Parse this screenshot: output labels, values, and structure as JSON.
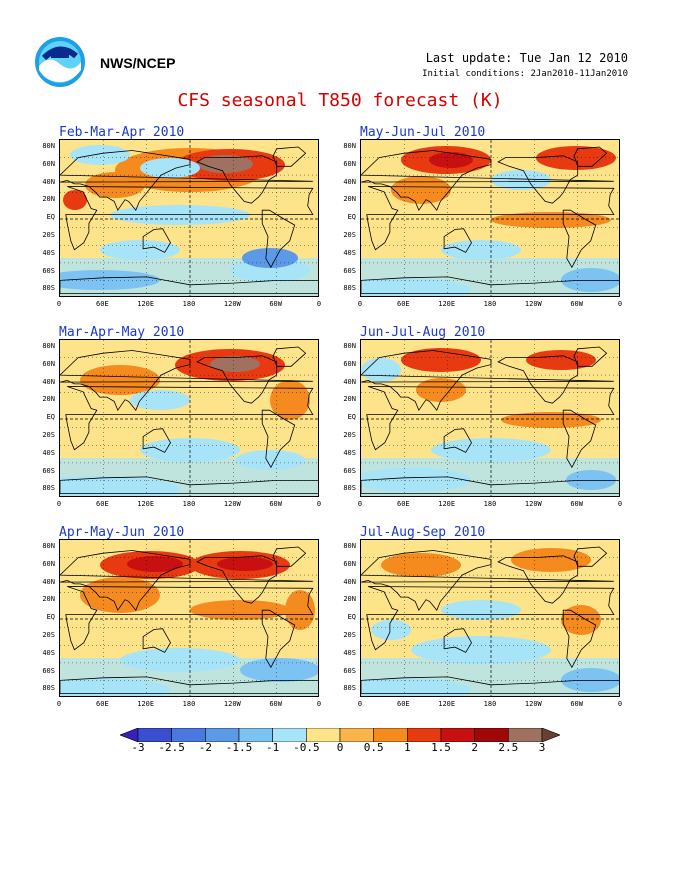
{
  "header": {
    "agency": "NWS/NCEP",
    "last_update": "Last update: Tue Jan 12 2010",
    "initial_conditions": "Initial conditions: 2Jan2010-11Jan2010",
    "title": "CFS seasonal T850 forecast (K)"
  },
  "panels": [
    {
      "title": "Feb-Mar-Apr 2010"
    },
    {
      "title": "May-Jun-Jul 2010"
    },
    {
      "title": "Mar-Apr-May 2010"
    },
    {
      "title": "Jun-Jul-Aug 2010"
    },
    {
      "title": "Apr-May-Jun 2010"
    },
    {
      "title": "Jul-Aug-Sep 2010"
    }
  ],
  "lat_labels": [
    "80N",
    "60N",
    "40N",
    "20N",
    "EQ",
    "20S",
    "40S",
    "60S",
    "80S"
  ],
  "lon_labels": [
    "0",
    "60E",
    "120E",
    "180",
    "120W",
    "60W",
    "0"
  ],
  "colorbar": {
    "labels": [
      "-3",
      "-2.5",
      "-2",
      "-1.5",
      "-1",
      "-0.5",
      "0",
      "0.5",
      "1",
      "1.5",
      "2",
      "2.5",
      "3"
    ],
    "colors": [
      "#3a1fbf",
      "#3a4fd0",
      "#4a78e0",
      "#5c9ae8",
      "#7cc2f2",
      "#a8e4f8",
      "#fde38a",
      "#f9b44a",
      "#f58a1e",
      "#e83a10",
      "#c81010",
      "#a00808",
      "#a07060",
      "#6a4030"
    ]
  },
  "colors": {
    "title": "#d40000",
    "panel_title": "#1c38c8"
  }
}
